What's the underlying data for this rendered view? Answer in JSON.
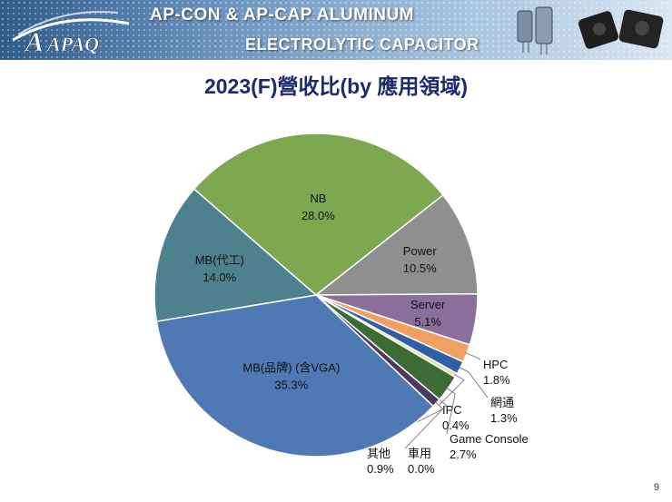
{
  "header": {
    "logo_text": "APAQ",
    "title_line1": "AP-CON & AP-CAP ALUMINUM",
    "title_line2": "ELECTROLYTIC CAPACITOR"
  },
  "slide": {
    "page_number": "9"
  },
  "chart_data": {
    "type": "pie",
    "title": "2023(F)營收比(by 應用領域)",
    "slices": [
      {
        "name": "NB",
        "value": 28.0,
        "label": "28.0%",
        "color": "#7ea84f"
      },
      {
        "name": "Power",
        "value": 10.5,
        "label": "10.5%",
        "color": "#8f8f8f"
      },
      {
        "name": "Server",
        "value": 5.1,
        "label": "5.1%",
        "color": "#8a6f9c"
      },
      {
        "name": "HPC",
        "value": 1.8,
        "label": "1.8%",
        "color": "#f0a062"
      },
      {
        "name": "網通",
        "value": 1.3,
        "label": "1.3%",
        "color": "#2f5fa5"
      },
      {
        "name": "IPC",
        "value": 0.4,
        "label": "0.4%",
        "color": "#dfe89a"
      },
      {
        "name": "Game Console",
        "value": 2.7,
        "label": "2.7%",
        "color": "#3d6b35"
      },
      {
        "name": "車用",
        "value": 0.0,
        "label": "0.0%",
        "color": "#6f9fd8"
      },
      {
        "name": "其他",
        "value": 0.9,
        "label": "0.9%",
        "color": "#4b3a5e"
      },
      {
        "name": "MB(品牌) (含VGA)",
        "value": 35.3,
        "label": "35.3%",
        "color": "#4f79b5"
      },
      {
        "name": "MB(代工)",
        "value": 14.0,
        "label": "14.0%",
        "color": "#4e818e"
      }
    ]
  }
}
